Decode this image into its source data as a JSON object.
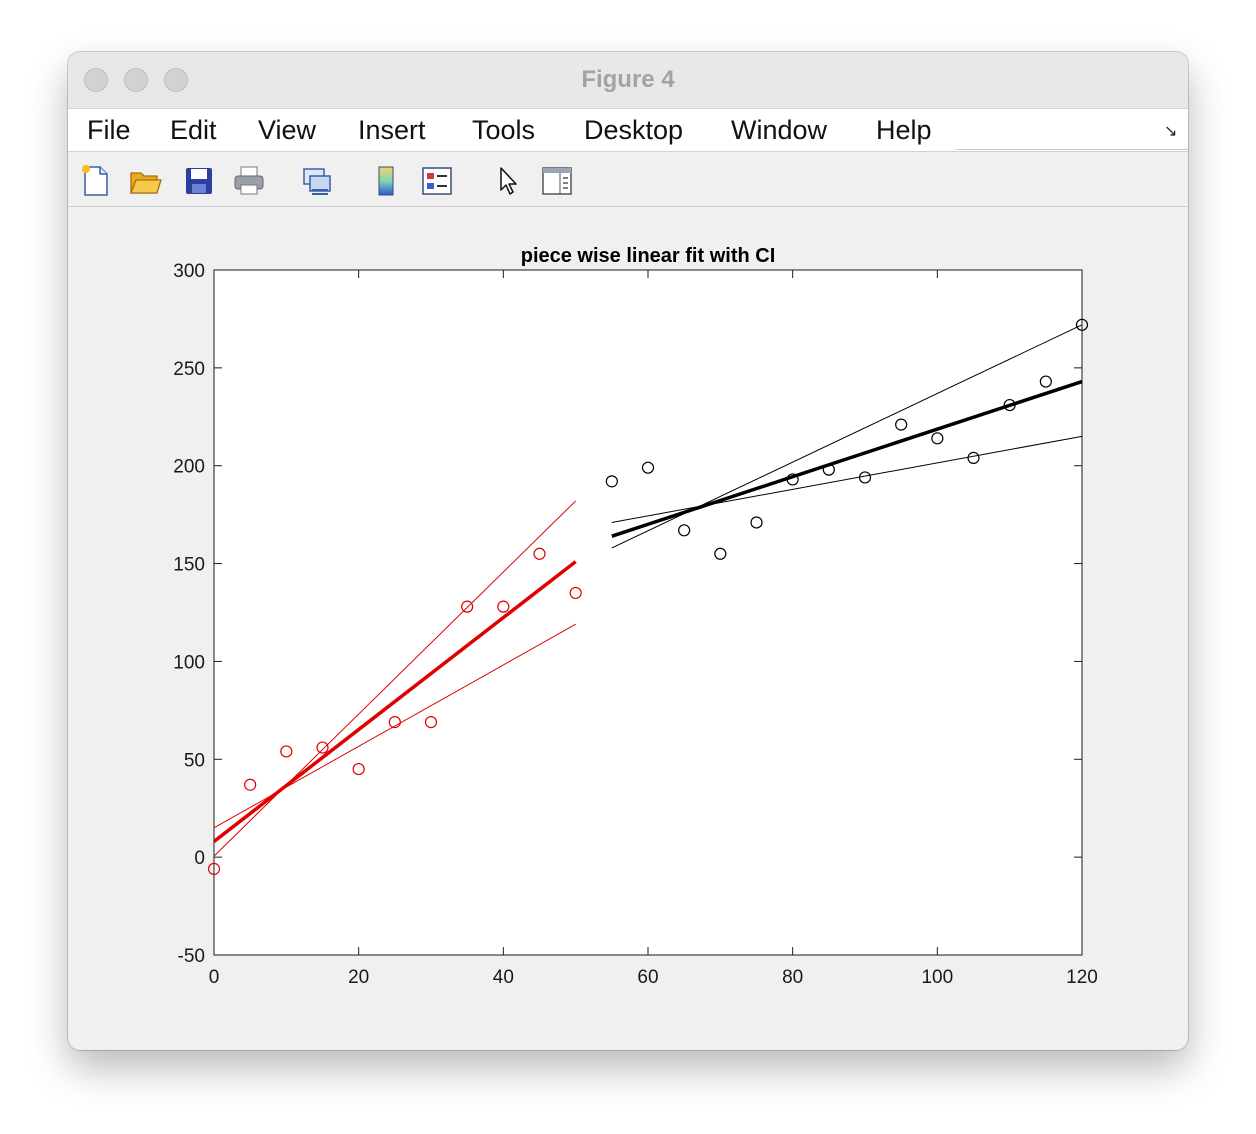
{
  "window": {
    "title": "Figure 4"
  },
  "menu": {
    "items": [
      "File",
      "Edit",
      "View",
      "Insert",
      "Tools",
      "Desktop",
      "Window",
      "Help"
    ]
  },
  "toolbar": {
    "icons": [
      "new-figure-icon",
      "open-file-icon",
      "save-icon",
      "print-icon",
      "link-figure-icon",
      "colorbar-icon",
      "legend-icon",
      "pointer-icon",
      "property-editor-icon"
    ]
  },
  "colors": {
    "segment1": "#e00000",
    "segment2": "#000000"
  },
  "chart_data": {
    "type": "scatter",
    "title": "piece wise linear fit with CI",
    "xlabel": "",
    "ylabel": "",
    "xlim": [
      0,
      120
    ],
    "ylim": [
      -50,
      300
    ],
    "xticks": [
      0,
      20,
      40,
      60,
      80,
      100,
      120
    ],
    "yticks": [
      -50,
      0,
      50,
      100,
      150,
      200,
      250,
      300
    ],
    "grid": false,
    "series": [
      {
        "kind": "points",
        "color": "#e00000",
        "x": [
          0,
          5,
          10,
          15,
          20,
          25,
          30,
          35,
          40,
          45,
          50
        ],
        "y": [
          -6,
          37,
          54,
          56,
          45,
          69,
          69,
          128,
          128,
          155,
          135
        ]
      },
      {
        "kind": "points",
        "color": "#000000",
        "x": [
          55,
          60,
          65,
          70,
          75,
          80,
          85,
          90,
          95,
          100,
          105,
          110,
          115,
          120
        ],
        "y": [
          192,
          199,
          167,
          155,
          171,
          193,
          198,
          194,
          221,
          214,
          204,
          231,
          243,
          272
        ]
      },
      {
        "kind": "fit",
        "color": "#e00000",
        "width": 3.5,
        "x": [
          0,
          50
        ],
        "y": [
          8,
          151
        ]
      },
      {
        "kind": "ci",
        "color": "#e00000",
        "width": 1,
        "x": [
          0,
          50
        ],
        "y": [
          0.5,
          182
        ]
      },
      {
        "kind": "ci",
        "color": "#e00000",
        "width": 1,
        "x": [
          0,
          50
        ],
        "y": [
          15,
          119
        ]
      },
      {
        "kind": "fit",
        "color": "#000000",
        "width": 3.5,
        "x": [
          55,
          120
        ],
        "y": [
          164,
          243
        ]
      },
      {
        "kind": "ci",
        "color": "#000000",
        "width": 1,
        "x": [
          55,
          120
        ],
        "y": [
          158,
          272
        ]
      },
      {
        "kind": "ci",
        "color": "#000000",
        "width": 1,
        "x": [
          55,
          120
        ],
        "y": [
          171,
          215
        ]
      }
    ]
  }
}
